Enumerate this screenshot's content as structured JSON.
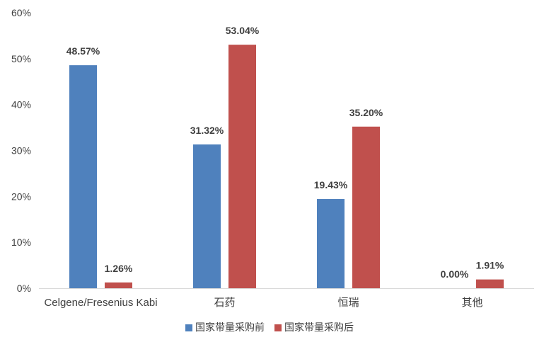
{
  "chart_data": {
    "type": "bar",
    "categories": [
      "Celgene/Fresenius Kabi",
      "石药",
      "恒瑞",
      "其他"
    ],
    "series": [
      {
        "name": "国家带量采购前",
        "color": "#4F81BD",
        "values": [
          48.57,
          31.32,
          19.43,
          0.0
        ],
        "labels": [
          "48.57%",
          "31.32%",
          "19.43%",
          "0.00%"
        ]
      },
      {
        "name": "国家带量采购后",
        "color": "#C0504D",
        "values": [
          1.26,
          53.04,
          35.2,
          1.91
        ],
        "labels": [
          "1.26%",
          "53.04%",
          "35.20%",
          "1.91%"
        ]
      }
    ],
    "ylim": [
      0,
      60
    ],
    "yticks": [
      0,
      10,
      20,
      30,
      40,
      50,
      60
    ],
    "ytick_labels": [
      "0%",
      "10%",
      "20%",
      "30%",
      "40%",
      "50%",
      "60%"
    ],
    "grid": false,
    "legend": "bottom"
  }
}
